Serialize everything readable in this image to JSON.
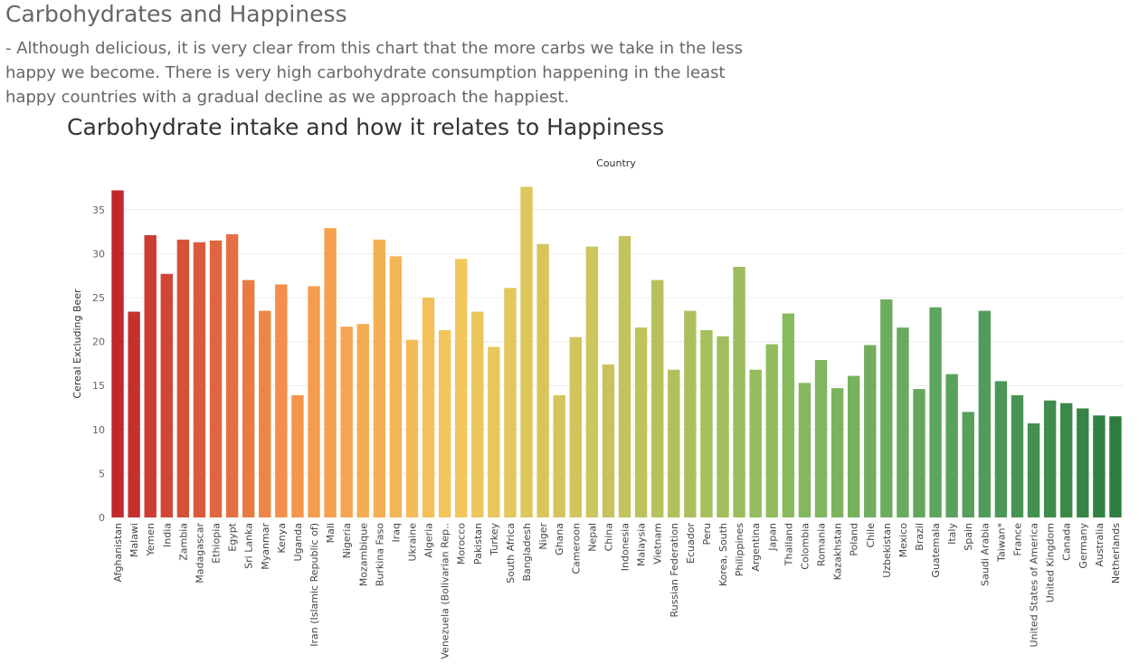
{
  "page": {
    "title": "Carbohydrates and Happiness",
    "description_lines": [
      "- Although delicious, it is very clear from this chart that the more carbs we take in the less",
      "happy we become. There is very high carbohydrate consumption happening in the least",
      "happy countries with a gradual decline as we approach the happiest."
    ]
  },
  "chart_data": {
    "type": "bar",
    "title": "Carbohydrate intake and how it relates to Happiness",
    "xlabel": "Country",
    "ylabel": "Cereal Excluding Beer",
    "ylim": [
      0,
      37.5
    ],
    "yticks": [
      0,
      5,
      10,
      15,
      20,
      25,
      30,
      35
    ],
    "grid": "horizontal",
    "color_scale": [
      "#c1272d",
      "#f4914a",
      "#f4c75c",
      "#c5c35c",
      "#8cbb5e",
      "#5aa35e",
      "#2e7d40"
    ],
    "categories": [
      "Afghanistan",
      "Malawi",
      "Yemen",
      "India",
      "Zambia",
      "Madagascar",
      "Ethiopia",
      "Egypt",
      "Sri Lanka",
      "Myanmar",
      "Kenya",
      "Uganda",
      "Iran (Islamic Republic of)",
      "Mali",
      "Nigeria",
      "Mozambique",
      "Burkina Faso",
      "Iraq",
      "Ukraine",
      "Algeria",
      "Venezuela (Bolivarian Rep..",
      "Morocco",
      "Pakistan",
      "Turkey",
      "South Africa",
      "Bangladesh",
      "Niger",
      "Ghana",
      "Cameroon",
      "Nepal",
      "China",
      "Indonesia",
      "Malaysia",
      "Vietnam",
      "Russian Federation",
      "Ecuador",
      "Peru",
      "Korea, South",
      "Philippines",
      "Argentina",
      "Japan",
      "Thailand",
      "Colombia",
      "Romania",
      "Kazakhstan",
      "Poland",
      "Chile",
      "Uzbekistan",
      "Mexico",
      "Brazil",
      "Guatemala",
      "Italy",
      "Spain",
      "Saudi Arabia",
      "Taiwan*",
      "France",
      "United States of America",
      "United Kingdom",
      "Canada",
      "Germany",
      "Australia",
      "Netherlands"
    ],
    "values": [
      37.2,
      23.4,
      32.1,
      27.7,
      31.6,
      31.3,
      31.5,
      32.2,
      27.0,
      23.5,
      26.5,
      13.9,
      26.3,
      32.9,
      21.7,
      22.0,
      31.6,
      29.7,
      20.2,
      25.0,
      21.3,
      29.4,
      23.4,
      19.4,
      26.1,
      37.6,
      31.1,
      13.9,
      20.5,
      30.8,
      17.4,
      32.0,
      21.6,
      27.0,
      16.8,
      23.5,
      21.3,
      20.6,
      28.5,
      16.8,
      19.7,
      23.2,
      15.3,
      17.9,
      14.7,
      16.1,
      19.6,
      24.8,
      21.6,
      14.6,
      23.9,
      16.3,
      12.0,
      23.5,
      15.5,
      13.9,
      10.7,
      13.3,
      13.0,
      12.4,
      11.6,
      11.5
    ]
  }
}
